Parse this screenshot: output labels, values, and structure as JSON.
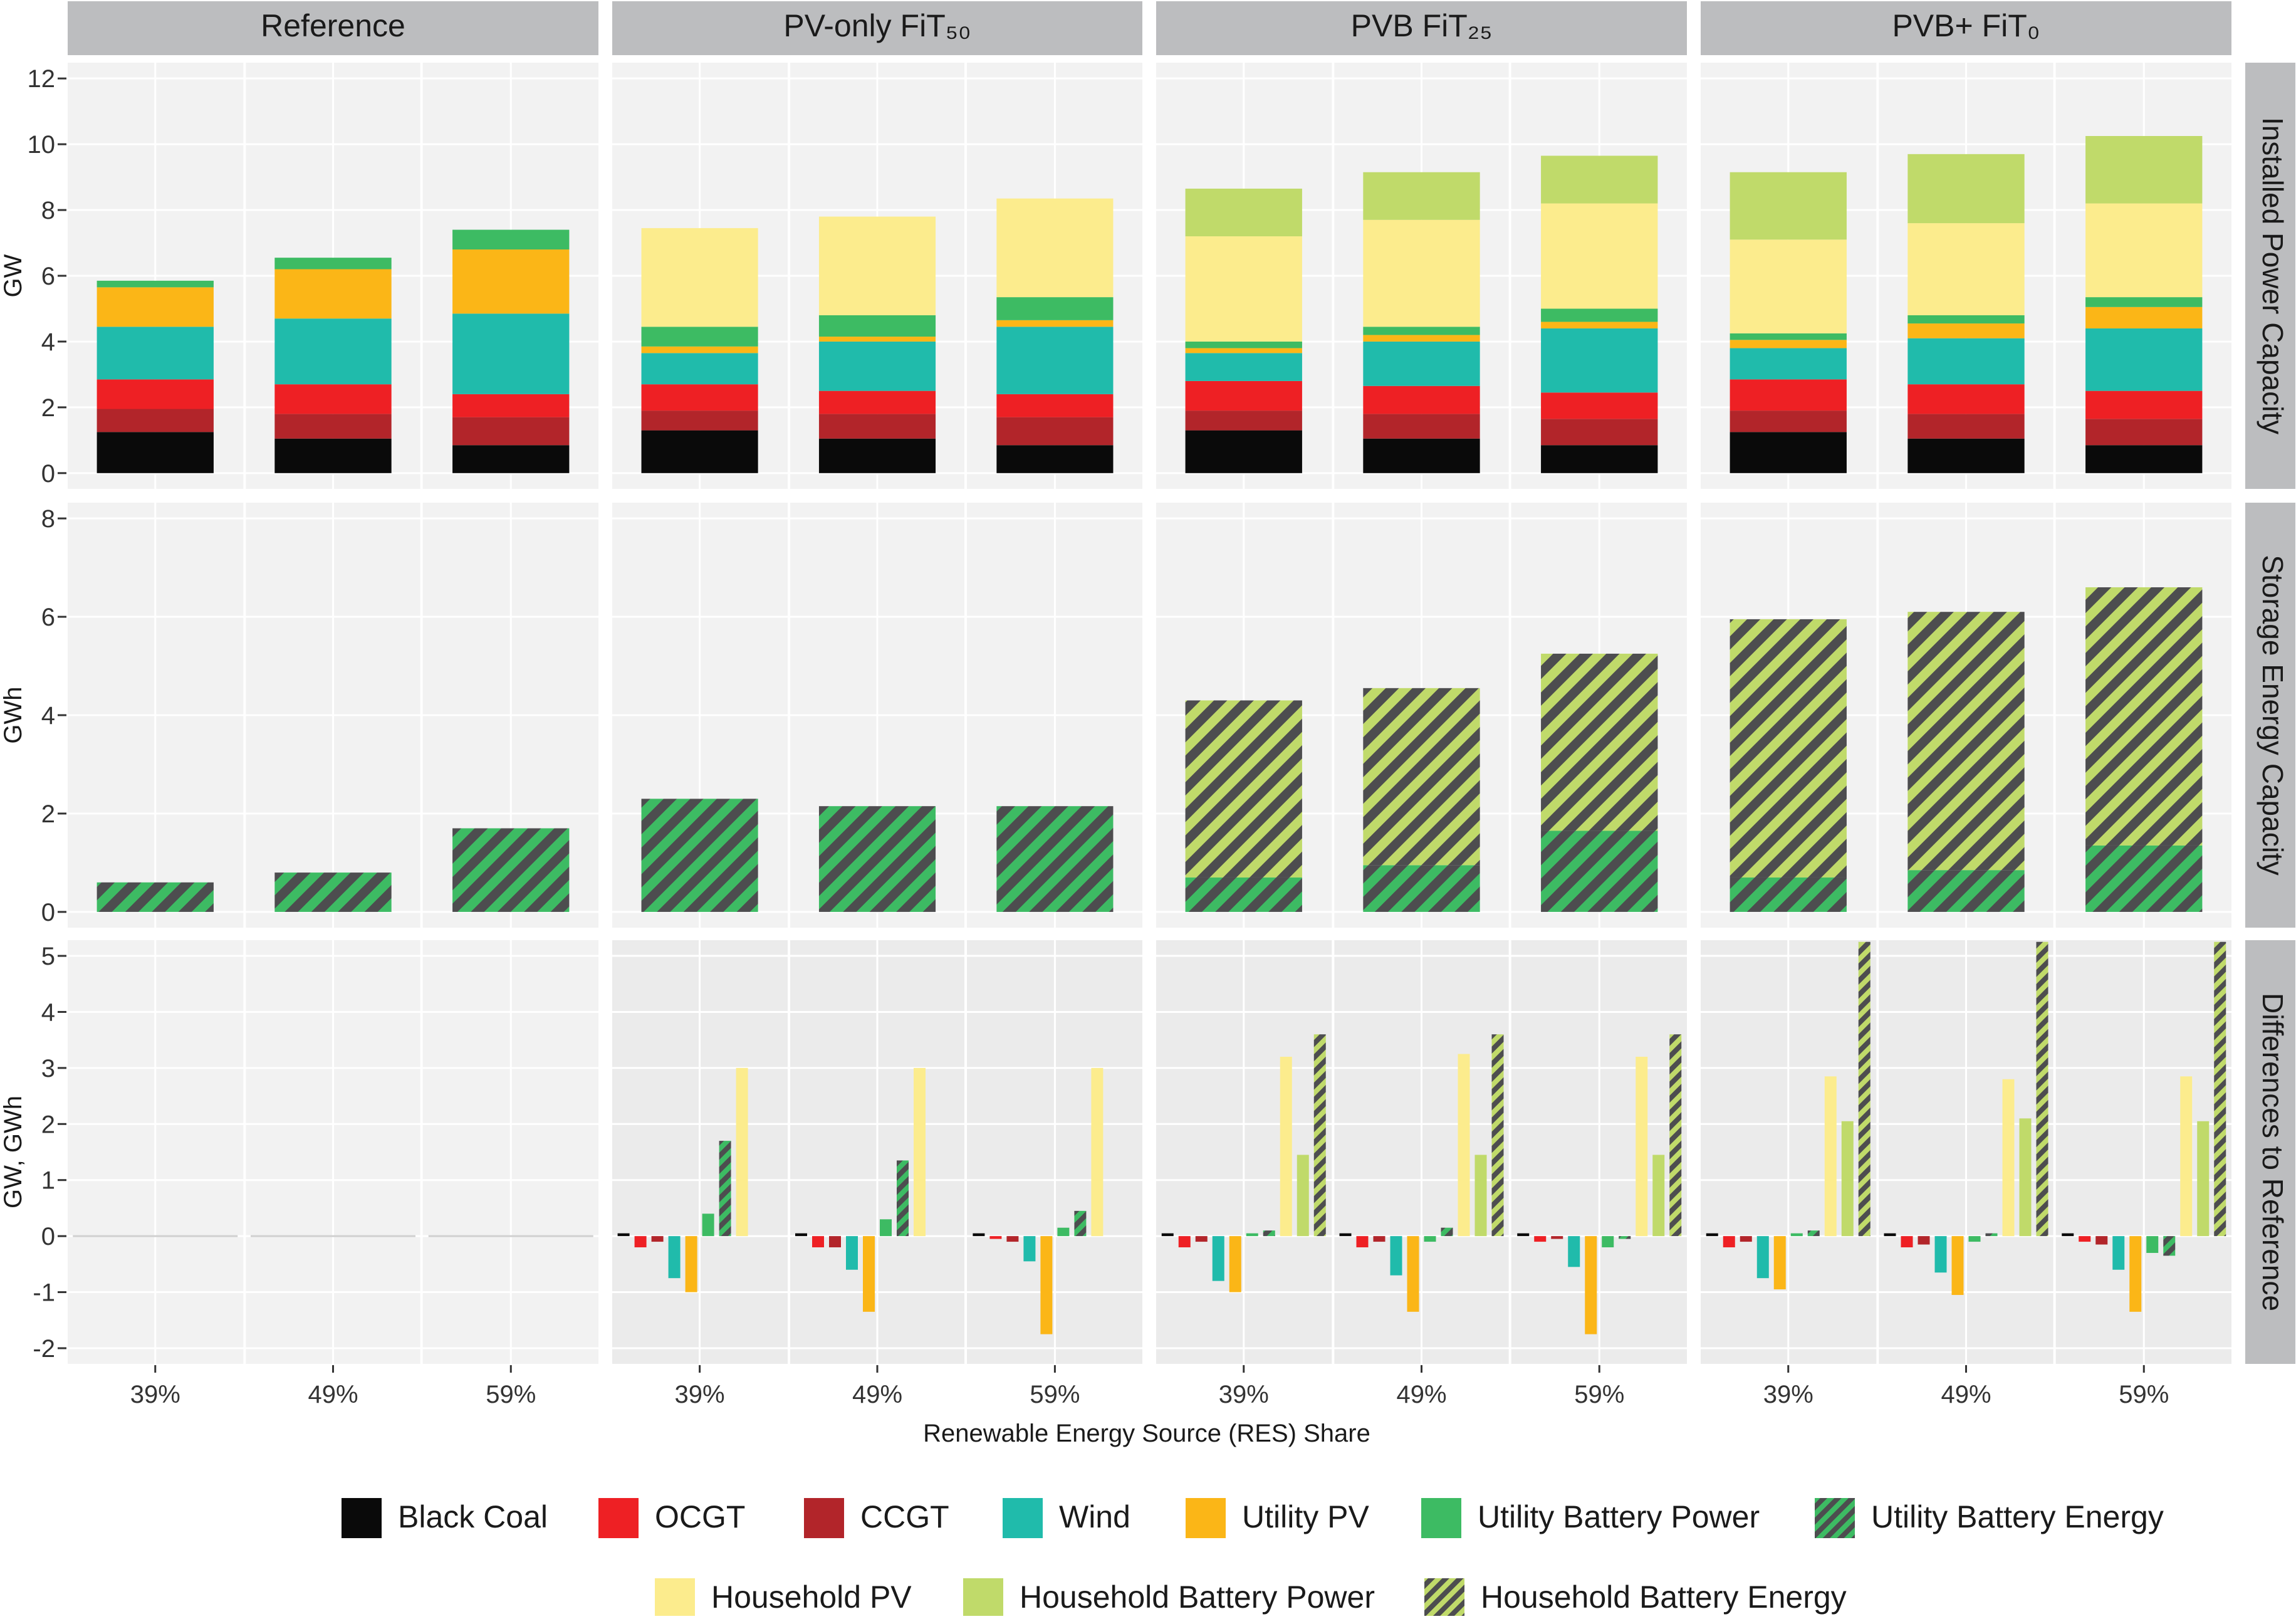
{
  "colors": {
    "Black Coal": "#0a0a0a",
    "OCGT": "#ee2024",
    "CCGT": "#b2252a",
    "Wind": "#20bbab",
    "Utility PV": "#fbb617",
    "Utility Battery Power": "#3dbb63",
    "Utility Battery Energy": "#3dbb63",
    "Household PV": "#fcec8d",
    "Household Battery Power": "#c0da6a",
    "Household Battery Energy": "#c0da6a",
    "hatch": "#4d4d4f",
    "strip": "#bcbdbf",
    "panel_top": "#f2f2f2",
    "panel_diff": "#ebebeb"
  },
  "facets": [
    "Reference",
    "PV-only FiT₅₀",
    "PVB FiT₂₅",
    "PVB+ FiT₀"
  ],
  "rows": [
    "Installed Power Capacity",
    "Storage Energy Capacity",
    "Differences to Reference"
  ],
  "xlabel": "Renewable Energy Source (RES) Share",
  "legend": [
    "Black Coal",
    "OCGT",
    "CCGT",
    "Wind",
    "Utility PV",
    "Utility Battery Power",
    "Utility Battery Energy",
    "Household PV",
    "Household Battery Power",
    "Household Battery Energy"
  ],
  "chart_data": [
    {
      "type": "bar",
      "title": "Installed Power Capacity",
      "stacked": true,
      "ylabel": "GW",
      "ylim": [
        0,
        12
      ],
      "yticks": [
        "0",
        "2",
        "4",
        "6",
        "8",
        "10",
        "12"
      ],
      "categories": [
        "39%",
        "49%",
        "59%"
      ],
      "facets": [
        {
          "name": "Reference",
          "series": [
            {
              "name": "Black Coal",
              "values": [
                1.25,
                1.05,
                0.85
              ]
            },
            {
              "name": "CCGT",
              "values": [
                0.7,
                0.75,
                0.85
              ]
            },
            {
              "name": "OCGT",
              "values": [
                0.9,
                0.9,
                0.7
              ]
            },
            {
              "name": "Wind",
              "values": [
                1.6,
                2.0,
                2.45
              ]
            },
            {
              "name": "Utility PV",
              "values": [
                1.2,
                1.5,
                1.95
              ]
            },
            {
              "name": "Utility Battery Power",
              "values": [
                0.2,
                0.35,
                0.6
              ]
            }
          ]
        },
        {
          "name": "PV-only FiT₅₀",
          "series": [
            {
              "name": "Black Coal",
              "values": [
                1.3,
                1.05,
                0.85
              ]
            },
            {
              "name": "CCGT",
              "values": [
                0.6,
                0.75,
                0.85
              ]
            },
            {
              "name": "OCGT",
              "values": [
                0.8,
                0.7,
                0.7
              ]
            },
            {
              "name": "Wind",
              "values": [
                0.95,
                1.5,
                2.05
              ]
            },
            {
              "name": "Utility PV",
              "values": [
                0.2,
                0.15,
                0.2
              ]
            },
            {
              "name": "Utility Battery Power",
              "values": [
                0.6,
                0.65,
                0.7
              ]
            },
            {
              "name": "Household PV",
              "values": [
                3.0,
                3.0,
                3.0
              ]
            }
          ]
        },
        {
          "name": "PVB FiT₂₅",
          "series": [
            {
              "name": "Black Coal",
              "values": [
                1.3,
                1.05,
                0.85
              ]
            },
            {
              "name": "CCGT",
              "values": [
                0.6,
                0.75,
                0.8
              ]
            },
            {
              "name": "OCGT",
              "values": [
                0.9,
                0.85,
                0.8
              ]
            },
            {
              "name": "Wind",
              "values": [
                0.85,
                1.35,
                1.95
              ]
            },
            {
              "name": "Utility PV",
              "values": [
                0.15,
                0.2,
                0.2
              ]
            },
            {
              "name": "Utility Battery Power",
              "values": [
                0.2,
                0.25,
                0.4
              ]
            },
            {
              "name": "Household PV",
              "values": [
                3.2,
                3.25,
                3.2
              ]
            },
            {
              "name": "Household Battery Power",
              "values": [
                1.45,
                1.45,
                1.45
              ]
            }
          ]
        },
        {
          "name": "PVB+ FiT₀",
          "series": [
            {
              "name": "Black Coal",
              "values": [
                1.25,
                1.05,
                0.85
              ]
            },
            {
              "name": "CCGT",
              "values": [
                0.65,
                0.75,
                0.8
              ]
            },
            {
              "name": "OCGT",
              "values": [
                0.95,
                0.9,
                0.85
              ]
            },
            {
              "name": "Wind",
              "values": [
                0.95,
                1.4,
                1.9
              ]
            },
            {
              "name": "Utility PV",
              "values": [
                0.25,
                0.45,
                0.65
              ]
            },
            {
              "name": "Utility Battery Power",
              "values": [
                0.2,
                0.25,
                0.3
              ]
            },
            {
              "name": "Household PV",
              "values": [
                2.85,
                2.8,
                2.85
              ]
            },
            {
              "name": "Household Battery Power",
              "values": [
                2.05,
                2.1,
                2.05
              ]
            }
          ]
        }
      ]
    },
    {
      "type": "bar",
      "title": "Storage Energy Capacity",
      "stacked": true,
      "ylabel": "GWh",
      "ylim": [
        0,
        8
      ],
      "yticks": [
        "0",
        "2",
        "4",
        "6",
        "8"
      ],
      "categories": [
        "39%",
        "49%",
        "59%"
      ],
      "facets": [
        {
          "name": "Reference",
          "series": [
            {
              "name": "Utility Battery Energy",
              "values": [
                0.6,
                0.8,
                1.7
              ]
            }
          ]
        },
        {
          "name": "PV-only FiT₅₀",
          "series": [
            {
              "name": "Utility Battery Energy",
              "values": [
                2.3,
                2.15,
                2.15
              ]
            }
          ]
        },
        {
          "name": "PVB FiT₂₅",
          "series": [
            {
              "name": "Utility Battery Energy",
              "values": [
                0.7,
                0.95,
                1.65
              ]
            },
            {
              "name": "Household Battery Energy",
              "values": [
                3.6,
                3.6,
                3.6
              ]
            }
          ]
        },
        {
          "name": "PVB+ FiT₀",
          "series": [
            {
              "name": "Utility Battery Energy",
              "values": [
                0.7,
                0.85,
                1.35
              ]
            },
            {
              "name": "Household Battery Energy",
              "values": [
                5.25,
                5.25,
                5.25
              ]
            }
          ]
        }
      ]
    },
    {
      "type": "bar",
      "title": "Differences to Reference",
      "stacked": false,
      "ylabel": "GW, GWh",
      "ylim": [
        -2,
        5
      ],
      "yticks": [
        "-2",
        "-1",
        "0",
        "1",
        "2",
        "3",
        "4",
        "5"
      ],
      "categories": [
        "39%",
        "49%",
        "59%"
      ],
      "series_order": [
        "Black Coal",
        "OCGT",
        "CCGT",
        "Wind",
        "Utility PV",
        "Utility Battery Power",
        "Utility Battery Energy",
        "Household PV",
        "Household Battery Power",
        "Household Battery Energy"
      ],
      "facets": [
        {
          "name": "Reference",
          "values": [
            [
              0,
              0,
              0,
              0,
              0,
              0,
              0,
              0,
              0,
              0
            ],
            [
              0,
              0,
              0,
              0,
              0,
              0,
              0,
              0,
              0,
              0
            ],
            [
              0,
              0,
              0,
              0,
              0,
              0,
              0,
              0,
              0,
              0
            ]
          ]
        },
        {
          "name": "PV-only FiT₅₀",
          "values": [
            [
              0.05,
              -0.2,
              -0.1,
              -0.75,
              -1.0,
              0.4,
              1.7,
              3.0,
              0,
              0
            ],
            [
              0.05,
              -0.2,
              -0.2,
              -0.6,
              -1.35,
              0.3,
              1.35,
              3.0,
              0,
              0
            ],
            [
              0.05,
              -0.05,
              -0.1,
              -0.45,
              -1.75,
              0.15,
              0.45,
              3.0,
              0,
              0
            ]
          ]
        },
        {
          "name": "PVB FiT₂₅",
          "values": [
            [
              0.05,
              -0.2,
              -0.1,
              -0.8,
              -1.0,
              0.05,
              0.1,
              3.2,
              1.45,
              3.6
            ],
            [
              0.05,
              -0.2,
              -0.1,
              -0.7,
              -1.35,
              -0.1,
              0.15,
              3.25,
              1.45,
              3.6
            ],
            [
              0.05,
              -0.1,
              -0.05,
              -0.55,
              -1.75,
              -0.2,
              -0.05,
              3.2,
              1.45,
              3.6
            ]
          ]
        },
        {
          "name": "PVB+ FiT₀",
          "values": [
            [
              0.05,
              -0.2,
              -0.1,
              -0.75,
              -0.95,
              0.05,
              0.1,
              2.85,
              2.05,
              5.25
            ],
            [
              0.05,
              -0.2,
              -0.15,
              -0.65,
              -1.05,
              -0.1,
              0.05,
              2.8,
              2.1,
              5.25
            ],
            [
              0.05,
              -0.1,
              -0.15,
              -0.6,
              -1.35,
              -0.3,
              -0.35,
              2.85,
              2.05,
              5.25
            ]
          ]
        }
      ]
    }
  ]
}
